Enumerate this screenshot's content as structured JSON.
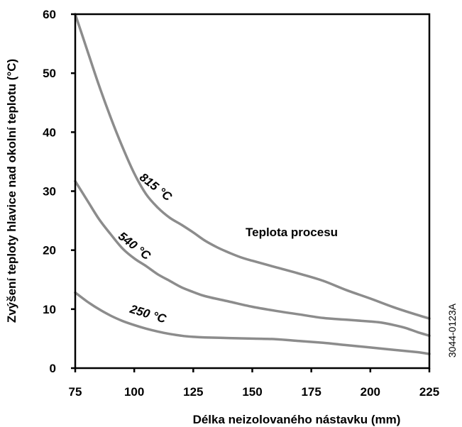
{
  "chart_data": {
    "type": "line",
    "xlabel": "Délka neizolovaného nástavku (mm)",
    "ylabel": "Zvýšení teploty hlavice nad okolní teplotu (°C)",
    "xlim": [
      75,
      225
    ],
    "ylim": [
      0,
      60
    ],
    "x_ticks": [
      75,
      100,
      125,
      150,
      175,
      200,
      225
    ],
    "y_ticks": [
      0,
      10,
      20,
      30,
      40,
      50,
      60
    ],
    "grid": false,
    "colors": {
      "line": "#8c8c8c",
      "axis": "#000000"
    },
    "annotation": "Teplota procesu",
    "figure_code": "3044-0123A",
    "series": [
      {
        "name": "815 °C",
        "x": [
          75,
          80,
          85,
          90,
          95,
          100,
          105,
          110,
          115,
          120,
          125,
          130,
          135,
          140,
          145,
          150,
          160,
          170,
          180,
          190,
          200,
          210,
          220,
          225
        ],
        "y": [
          60,
          54,
          48,
          42.5,
          37.5,
          33,
          29.5,
          27.2,
          25.5,
          24.3,
          23,
          21.6,
          20.5,
          19.6,
          18.8,
          18.2,
          17.1,
          16,
          14.8,
          13.2,
          11.8,
          10.3,
          9,
          8.4
        ]
      },
      {
        "name": "540 °C",
        "x": [
          75,
          80,
          85,
          90,
          95,
          100,
          105,
          110,
          115,
          120,
          125,
          130,
          140,
          150,
          160,
          170,
          180,
          190,
          200,
          205,
          210,
          215,
          220,
          225
        ],
        "y": [
          31.7,
          28.5,
          25.3,
          22.7,
          20.3,
          18.6,
          17.3,
          15.9,
          14.8,
          13.7,
          12.9,
          12.2,
          11.3,
          10.4,
          9.7,
          9.1,
          8.5,
          8.2,
          7.9,
          7.7,
          7.3,
          6.8,
          6.1,
          5.5
        ]
      },
      {
        "name": "250 °C",
        "x": [
          75,
          80,
          85,
          90,
          95,
          100,
          105,
          110,
          115,
          120,
          125,
          130,
          140,
          150,
          160,
          170,
          180,
          190,
          200,
          210,
          220,
          225
        ],
        "y": [
          12.8,
          11.3,
          10,
          8.9,
          8,
          7.3,
          6.7,
          6.2,
          5.8,
          5.5,
          5.3,
          5.2,
          5.1,
          5,
          4.9,
          4.6,
          4.3,
          3.9,
          3.5,
          3.1,
          2.7,
          2.4
        ]
      }
    ]
  }
}
